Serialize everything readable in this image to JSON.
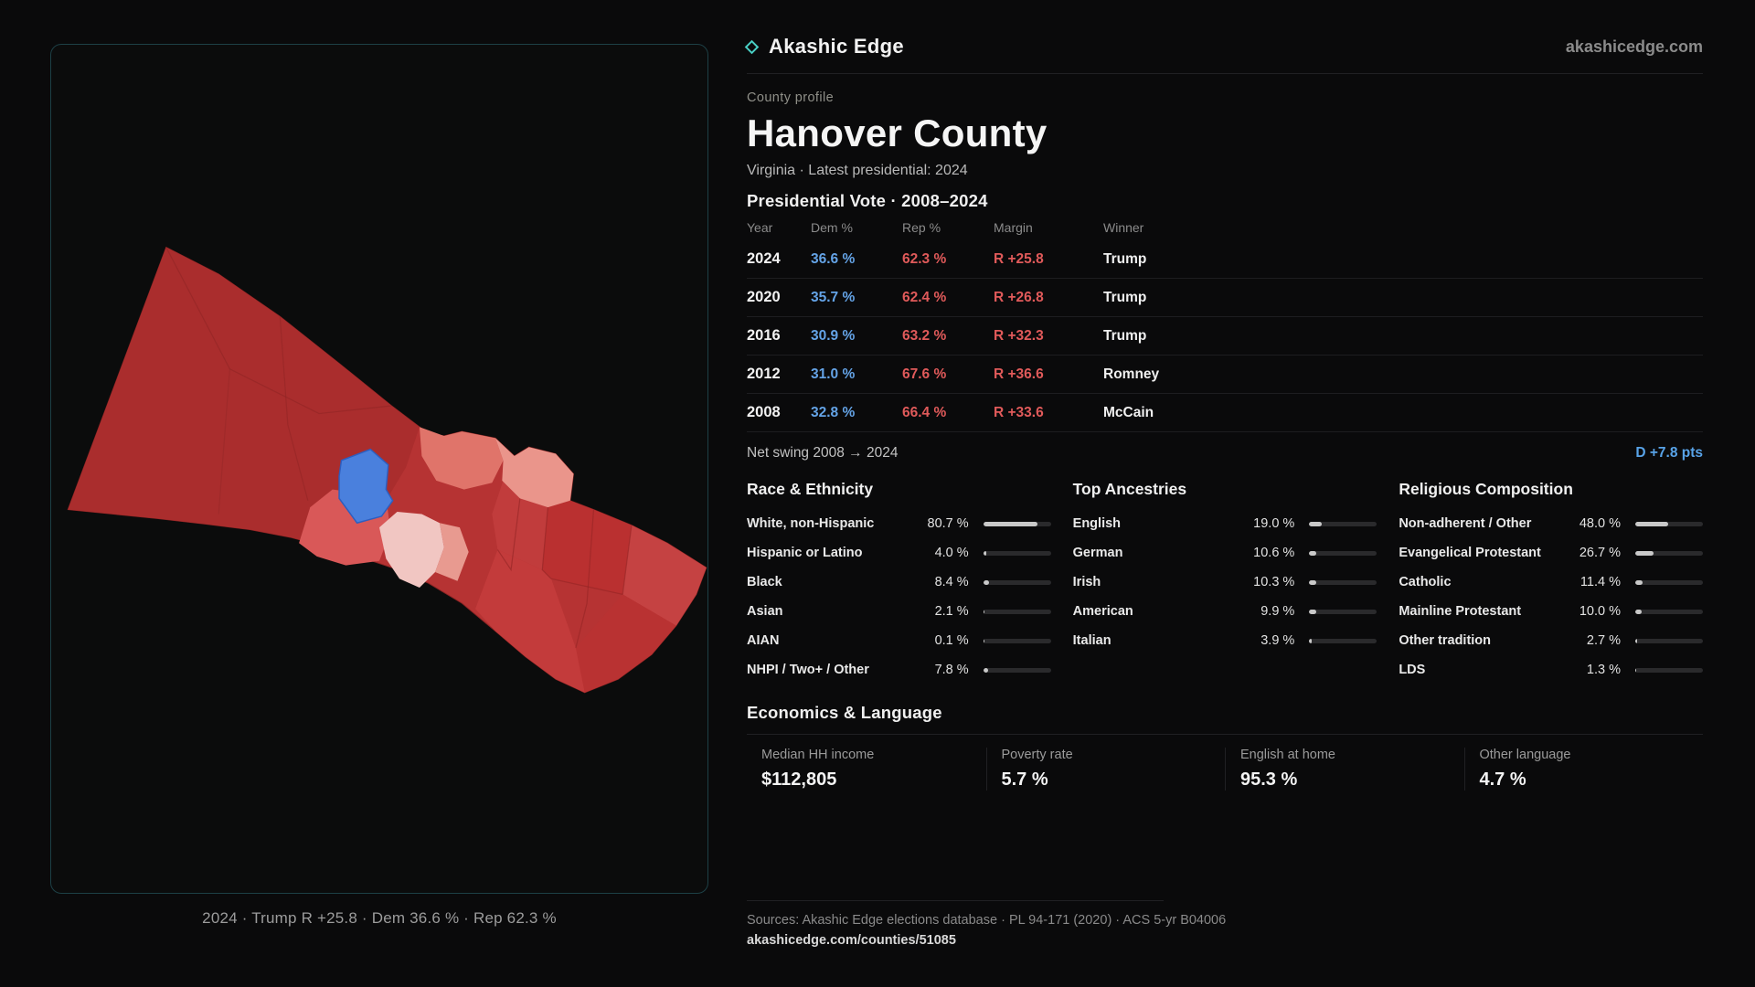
{
  "brand": {
    "name": "Akashic Edge",
    "domain": "akashicedge.com"
  },
  "map": {
    "caption": "2024 · Trump R +25.8 · Dem 36.6 % · Rep 62.3 %"
  },
  "profile": {
    "eyebrow": "County profile",
    "title": "Hanover County",
    "subtitle": "Virginia · Latest presidential: 2024"
  },
  "vote_table": {
    "heading": "Presidential Vote · 2008–2024",
    "columns": [
      "Year",
      "Dem %",
      "Rep %",
      "Margin",
      "Winner"
    ],
    "rows": [
      {
        "year": "2024",
        "dem": "36.6 %",
        "rep": "62.3 %",
        "margin": "R +25.8",
        "winner": "Trump"
      },
      {
        "year": "2020",
        "dem": "35.7 %",
        "rep": "62.4 %",
        "margin": "R +26.8",
        "winner": "Trump"
      },
      {
        "year": "2016",
        "dem": "30.9 %",
        "rep": "63.2 %",
        "margin": "R +32.3",
        "winner": "Trump"
      },
      {
        "year": "2012",
        "dem": "31.0 %",
        "rep": "67.6 %",
        "margin": "R +36.6",
        "winner": "Romney"
      },
      {
        "year": "2008",
        "dem": "32.8 %",
        "rep": "66.4 %",
        "margin": "R +33.6",
        "winner": "McCain"
      }
    ]
  },
  "net_swing": {
    "label": "Net swing 2008 → 2024",
    "value": "D +7.8 pts"
  },
  "demographics": [
    {
      "heading": "Race & Ethnicity",
      "rows": [
        {
          "label": "White, non-Hispanic",
          "value": "80.7 %",
          "pct": 80.7
        },
        {
          "label": "Hispanic or Latino",
          "value": "4.0 %",
          "pct": 4.0
        },
        {
          "label": "Black",
          "value": "8.4 %",
          "pct": 8.4
        },
        {
          "label": "Asian",
          "value": "2.1 %",
          "pct": 2.1
        },
        {
          "label": "AIAN",
          "value": "0.1 %",
          "pct": 0.1
        },
        {
          "label": "NHPI / Two+ / Other",
          "value": "7.8 %",
          "pct": 7.8
        }
      ]
    },
    {
      "heading": "Top Ancestries",
      "rows": [
        {
          "label": "English",
          "value": "19.0 %",
          "pct": 19.0
        },
        {
          "label": "German",
          "value": "10.6 %",
          "pct": 10.6
        },
        {
          "label": "Irish",
          "value": "10.3 %",
          "pct": 10.3
        },
        {
          "label": "American",
          "value": "9.9 %",
          "pct": 9.9
        },
        {
          "label": "Italian",
          "value": "3.9 %",
          "pct": 3.9
        }
      ]
    },
    {
      "heading": "Religious Composition",
      "rows": [
        {
          "label": "Non-adherent / Other",
          "value": "48.0 %",
          "pct": 48.0
        },
        {
          "label": "Evangelical Protestant",
          "value": "26.7 %",
          "pct": 26.7
        },
        {
          "label": "Catholic",
          "value": "11.4 %",
          "pct": 11.4
        },
        {
          "label": "Mainline Protestant",
          "value": "10.0 %",
          "pct": 10.0
        },
        {
          "label": "Other tradition",
          "value": "2.7 %",
          "pct": 2.7
        },
        {
          "label": "LDS",
          "value": "1.3 %",
          "pct": 1.3
        }
      ]
    }
  ],
  "economics": {
    "heading": "Economics & Language",
    "stats": [
      {
        "label": "Median HH income",
        "value": "$112,805"
      },
      {
        "label": "Poverty rate",
        "value": "5.7 %"
      },
      {
        "label": "English at home",
        "value": "95.3 %"
      },
      {
        "label": "Other language",
        "value": "4.7 %"
      }
    ]
  },
  "footer": {
    "sources": "Sources: Akashic Edge elections database · PL 94-171 (2020) · ACS 5-yr B04006",
    "permalink": "akashicedge.com/counties/51085"
  },
  "colors": {
    "accent": "#49cfc4",
    "dem": "#64a3e6",
    "rep": "#e05a5a"
  }
}
